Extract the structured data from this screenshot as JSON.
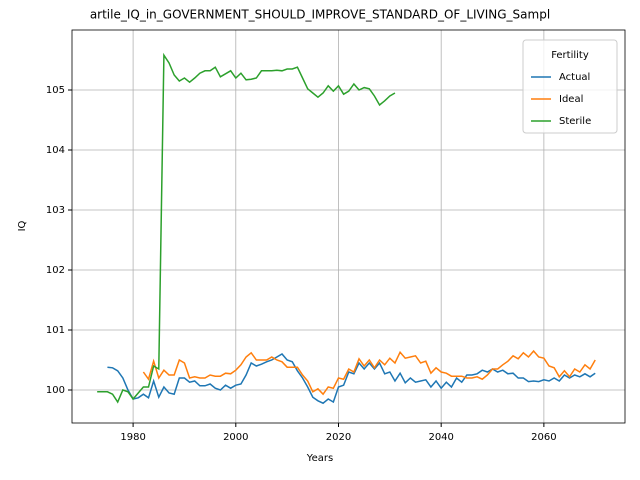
{
  "chart_data": {
    "type": "line",
    "title": "artile_IQ_in_GOVERNMENT_SHOULD_IMPROVE_STANDARD_OF_LIVING_Sampl",
    "xlabel": "Years",
    "ylabel": "IQ",
    "x": [
      1973,
      1974,
      1975,
      1976,
      1977,
      1978,
      1979,
      1980,
      1981,
      1982,
      1983,
      1984,
      1985,
      1986,
      1987,
      1988,
      1989,
      1990,
      1991,
      1992,
      1993,
      1994,
      1995,
      1996,
      1997,
      1998,
      1999,
      2000,
      2001,
      2002,
      2003,
      2004,
      2005,
      2006,
      2007,
      2008,
      2009,
      2010,
      2011,
      2012,
      2013,
      2014,
      2015,
      2016,
      2017,
      2018,
      2019,
      2020,
      2021,
      2022,
      2023,
      2024,
      2025,
      2026,
      2027,
      2028,
      2029,
      2030,
      2031,
      2032,
      2033,
      2034,
      2035,
      2036,
      2037,
      2038,
      2039,
      2040,
      2041,
      2042,
      2043,
      2044,
      2045,
      2046,
      2047,
      2048,
      2049,
      2050,
      2051,
      2052,
      2053,
      2054,
      2055,
      2056,
      2057,
      2058,
      2059,
      2060,
      2061,
      2062,
      2063,
      2064,
      2065,
      2066,
      2067,
      2068,
      2069,
      2070
    ],
    "series": [
      {
        "name": "Actual",
        "color": "#1f77b4",
        "values": [
          null,
          null,
          100.38,
          100.37,
          100.32,
          100.2,
          100.0,
          99.85,
          99.87,
          99.93,
          99.87,
          100.15,
          99.88,
          100.05,
          99.95,
          99.93,
          100.2,
          100.2,
          100.13,
          100.15,
          100.07,
          100.07,
          100.1,
          100.03,
          100.0,
          100.08,
          100.03,
          100.08,
          100.1,
          100.25,
          100.45,
          100.4,
          100.43,
          100.47,
          100.5,
          100.55,
          100.6,
          100.5,
          100.47,
          100.32,
          100.2,
          100.05,
          99.88,
          99.82,
          99.78,
          99.85,
          99.8,
          100.05,
          100.08,
          100.3,
          100.27,
          100.45,
          100.35,
          100.45,
          100.35,
          100.45,
          100.27,
          100.3,
          100.15,
          100.28,
          100.12,
          100.2,
          100.13,
          100.15,
          100.17,
          100.05,
          100.15,
          100.03,
          100.13,
          100.05,
          100.2,
          100.13,
          100.25,
          100.25,
          100.27,
          100.33,
          100.3,
          100.35,
          100.3,
          100.33,
          100.27,
          100.28,
          100.2,
          100.2,
          100.14,
          100.15,
          100.14,
          100.17,
          100.15,
          100.2,
          100.15,
          100.25,
          100.2,
          100.25,
          100.22,
          100.27,
          100.22,
          100.28
        ]
      },
      {
        "name": "Ideal",
        "color": "#ff7f0e",
        "values": [
          null,
          null,
          null,
          null,
          null,
          null,
          null,
          null,
          null,
          100.3,
          100.18,
          100.48,
          100.2,
          100.33,
          100.25,
          100.25,
          100.5,
          100.45,
          100.2,
          100.22,
          100.2,
          100.2,
          100.25,
          100.23,
          100.23,
          100.28,
          100.27,
          100.33,
          100.42,
          100.55,
          100.62,
          100.5,
          100.5,
          100.5,
          100.55,
          100.5,
          100.47,
          100.38,
          100.38,
          100.38,
          100.25,
          100.15,
          99.97,
          100.02,
          99.93,
          100.05,
          100.03,
          100.2,
          100.18,
          100.35,
          100.3,
          100.52,
          100.4,
          100.5,
          100.37,
          100.5,
          100.42,
          100.53,
          100.45,
          100.63,
          100.53,
          100.55,
          100.57,
          100.45,
          100.48,
          100.28,
          100.37,
          100.3,
          100.28,
          100.23,
          100.23,
          100.23,
          100.2,
          100.2,
          100.22,
          100.18,
          100.25,
          100.35,
          100.35,
          100.42,
          100.48,
          100.57,
          100.52,
          100.62,
          100.55,
          100.65,
          100.55,
          100.53,
          100.4,
          100.37,
          100.22,
          100.32,
          100.22,
          100.35,
          100.3,
          100.42,
          100.35,
          100.5
        ]
      },
      {
        "name": "Sterile",
        "color": "#2ca02c",
        "values": [
          99.97,
          99.97,
          99.97,
          99.93,
          99.8,
          100.0,
          99.97,
          99.85,
          99.95,
          100.05,
          100.05,
          100.4,
          100.35,
          105.58,
          105.45,
          105.25,
          105.15,
          105.2,
          105.13,
          105.2,
          105.28,
          105.32,
          105.32,
          105.38,
          105.22,
          105.27,
          105.32,
          105.2,
          105.28,
          105.17,
          105.18,
          105.2,
          105.32,
          105.32,
          105.32,
          105.33,
          105.32,
          105.35,
          105.35,
          105.38,
          105.2,
          105.02,
          104.95,
          104.88,
          104.95,
          105.07,
          104.98,
          105.07,
          104.93,
          104.98,
          105.1,
          105.0,
          105.04,
          105.02,
          104.9,
          104.75,
          104.82,
          104.9,
          104.95,
          null,
          null,
          null,
          null,
          null,
          null,
          null,
          null,
          null,
          null,
          null,
          null,
          null,
          null,
          null,
          null,
          null,
          null,
          null,
          null,
          null,
          null,
          null,
          null,
          null,
          null,
          null,
          null,
          null,
          null,
          null,
          null,
          null,
          null,
          null,
          null,
          null,
          null,
          null
        ]
      }
    ],
    "xlim": [
      1968.1,
      2075.8
    ],
    "ylim": [
      99.45,
      106.0
    ],
    "xticks": [
      1980,
      2000,
      2020,
      2040,
      2060
    ],
    "yticks": [
      100,
      101,
      102,
      103,
      104,
      105
    ],
    "grid": true,
    "legend_title": "Fertility",
    "legend": "upper right"
  }
}
